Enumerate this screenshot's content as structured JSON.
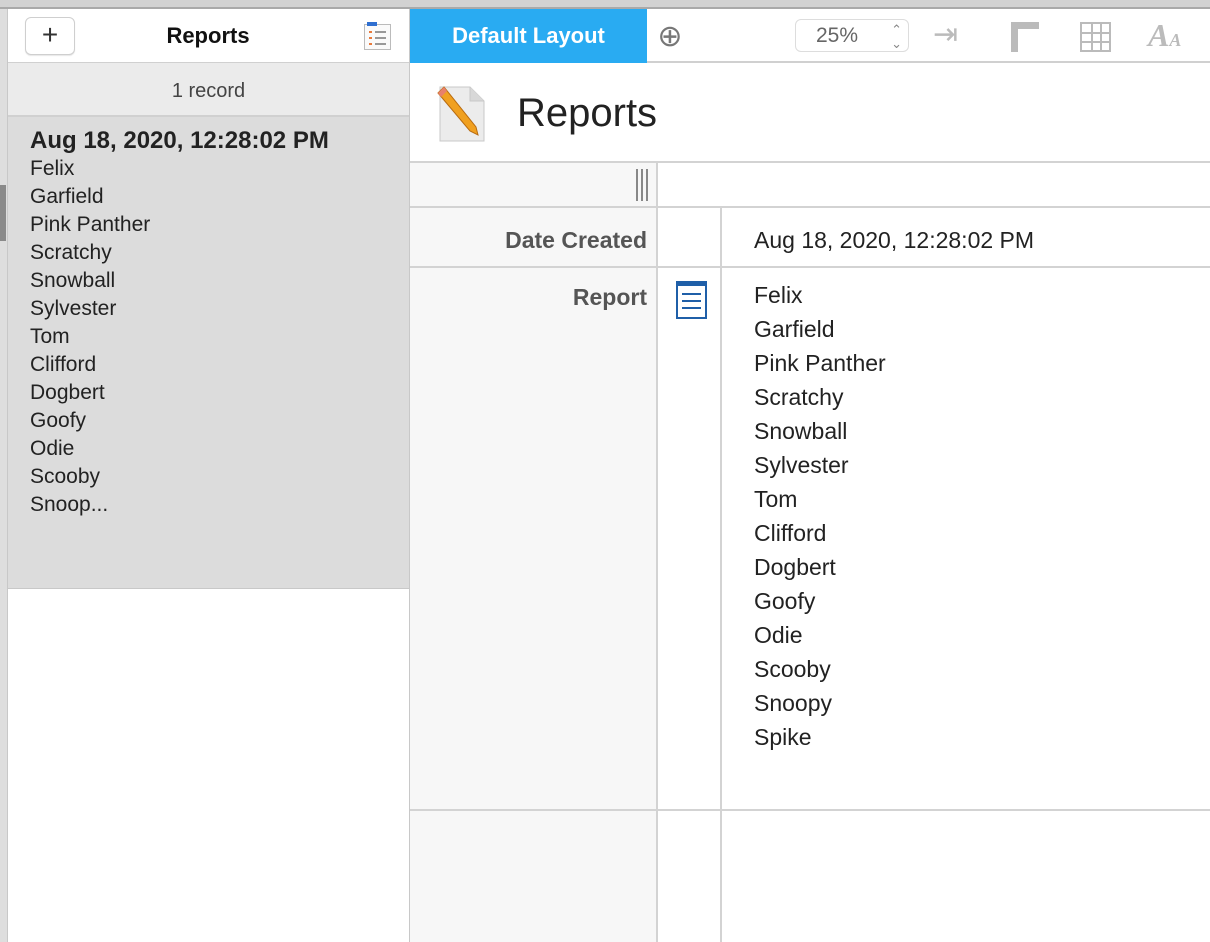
{
  "sidebar": {
    "add_label": "+",
    "title": "Reports",
    "record_count": "1 record",
    "record": {
      "date": "Aug 18, 2020, 12:28:02 PM",
      "names": [
        "Felix",
        "Garfield",
        "Pink Panther",
        "Scratchy",
        "Snowball",
        "Sylvester",
        "Tom",
        "Clifford",
        "Dogbert",
        "Goofy",
        "Odie",
        "Scooby",
        "Snoop..."
      ]
    }
  },
  "toolbar": {
    "tab_label": "Default Layout",
    "add_layout": "⊕",
    "zoom": "25%",
    "icons": [
      "tab-order-icon",
      "ruler-icon",
      "grid-icon",
      "font-icon"
    ]
  },
  "main": {
    "title": "Reports",
    "fields": [
      {
        "label": "Date Created",
        "value": "Aug 18, 2020, 12:28:02 PM"
      },
      {
        "label": "Report",
        "values": [
          "Felix",
          "Garfield",
          "Pink Panther",
          "Scratchy",
          "Snowball",
          "Sylvester",
          "Tom",
          "Clifford",
          "Dogbert",
          "Goofy",
          "Odie",
          "Scooby",
          "Snoopy",
          "Spike"
        ]
      }
    ]
  },
  "colors": {
    "accent": "#29abf2"
  }
}
